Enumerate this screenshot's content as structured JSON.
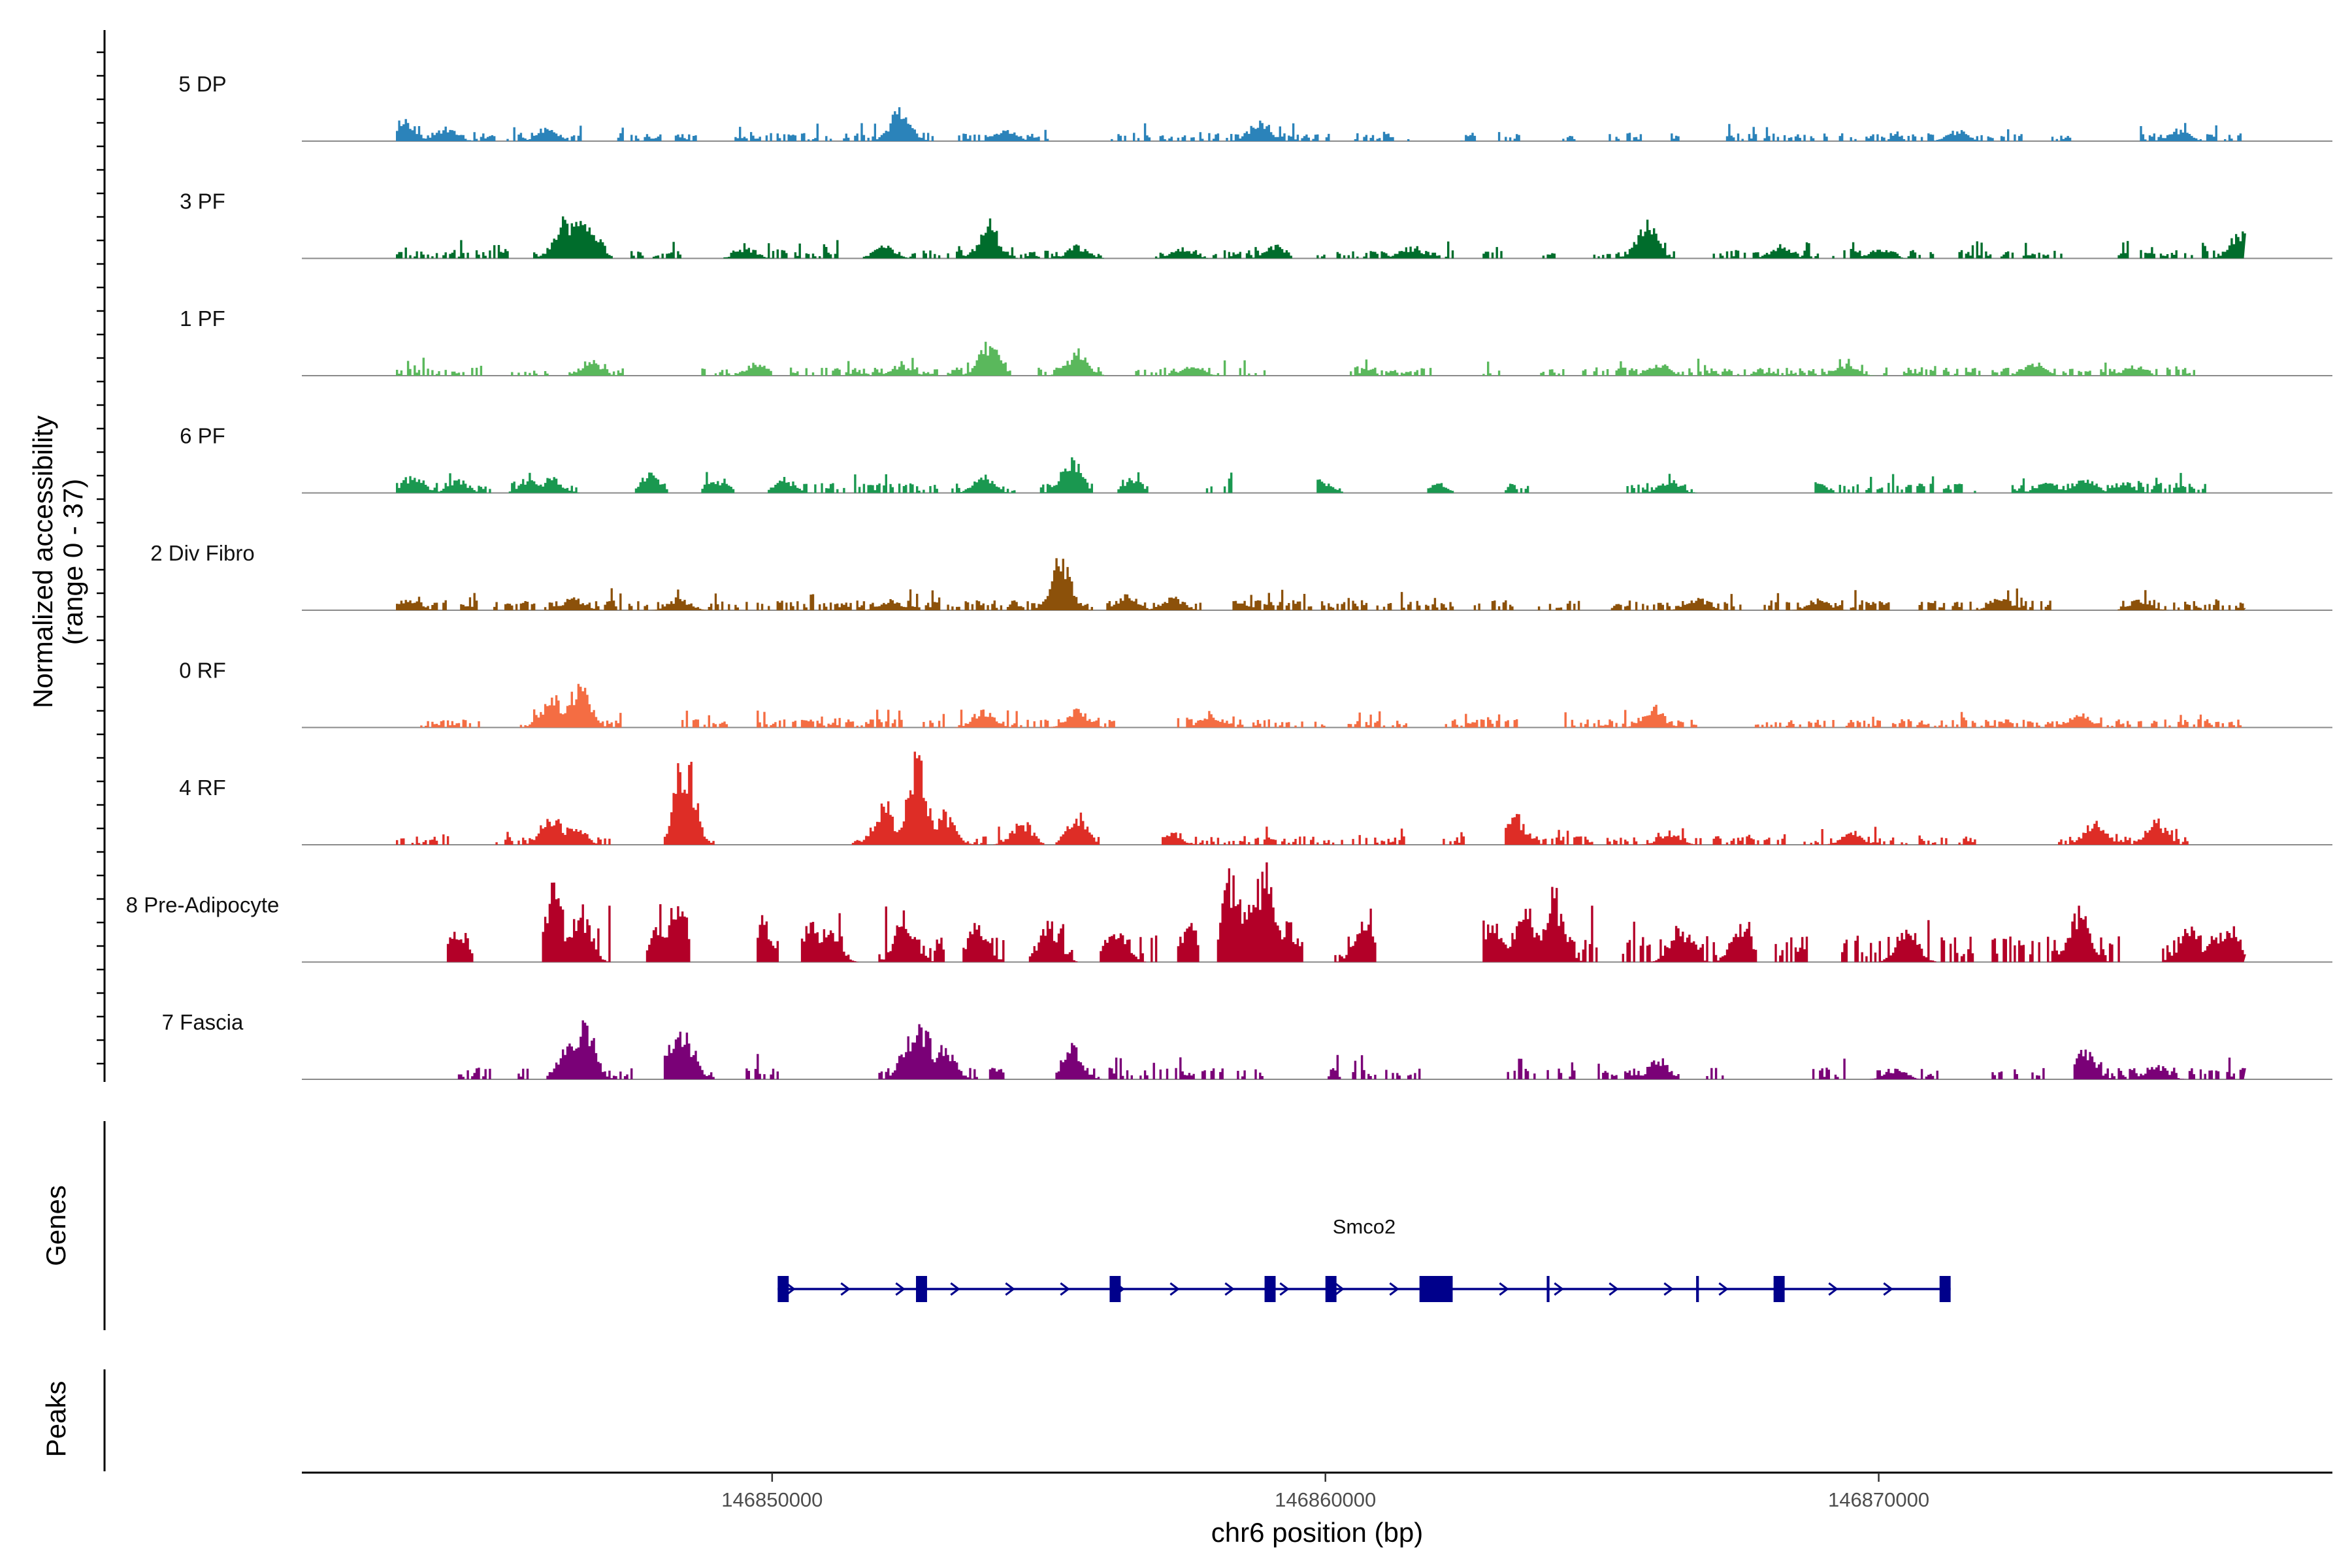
{
  "chart_data": {
    "type": "area",
    "title": "",
    "xlabel": "chr6 position (bp)",
    "ylabel": "Normalized accessibility\n(range 0 - 37)",
    "y_range": [
      0,
      37
    ],
    "xlim": [
      146841500,
      146878200
    ],
    "data_extent": [
      146843200,
      146876600
    ],
    "x_ticks": [
      146850000,
      146860000,
      146870000
    ],
    "x_tick_labels": [
      "146850000",
      "146860000",
      "146870000"
    ],
    "track_panel_label": "Genes",
    "peaks_panel_label": "Peaks",
    "series": [
      {
        "name": "5 DP",
        "color": "#2b83ba",
        "peaks": [
          [
            146843350,
            0.22
          ],
          [
            146844100,
            0.14
          ],
          [
            146845900,
            0.12
          ],
          [
            146848100,
            0.1
          ],
          [
            146852300,
            0.3
          ],
          [
            146854200,
            0.11
          ],
          [
            146858800,
            0.2
          ],
          [
            146862000,
            0.1
          ],
          [
            146866000,
            0.1
          ],
          [
            146871400,
            0.1
          ],
          [
            146875400,
            0.11
          ]
        ],
        "gaps": [
          [
            146846600,
            146847100
          ],
          [
            146848000,
            146848200
          ],
          [
            146848700,
            146849300
          ],
          [
            146852900,
            146853300
          ],
          [
            146855000,
            146856000
          ],
          [
            146860100,
            146860500
          ],
          [
            146861500,
            146862400
          ],
          [
            146862700,
            146863100
          ],
          [
            146863500,
            146864200
          ],
          [
            146864600,
            146865000
          ],
          [
            146865700,
            146866200
          ],
          [
            146866400,
            146867200
          ],
          [
            146872600,
            146873100
          ],
          [
            146873500,
            146874700
          ]
        ],
        "noise": 0.05,
        "seed": 11
      },
      {
        "name": "3 PF",
        "color": "#006d2c",
        "peaks": [
          [
            146846200,
            0.35
          ],
          [
            146846500,
            0.45
          ],
          [
            146846700,
            0.32
          ],
          [
            146849500,
            0.1
          ],
          [
            146852000,
            0.12
          ],
          [
            146853900,
            0.33
          ],
          [
            146855500,
            0.12
          ],
          [
            146857400,
            0.1
          ],
          [
            146859100,
            0.12
          ],
          [
            146861500,
            0.1
          ],
          [
            146865800,
            0.38
          ],
          [
            146868200,
            0.12
          ],
          [
            146870000,
            0.1
          ],
          [
            146876500,
            0.24
          ]
        ],
        "gaps": [
          [
            146845300,
            146845500
          ],
          [
            146847100,
            146847400
          ],
          [
            146848500,
            146849100
          ],
          [
            146851200,
            146851600
          ],
          [
            146856000,
            146856900
          ],
          [
            146859400,
            146859800
          ],
          [
            146862400,
            146862800
          ],
          [
            146863200,
            146863900
          ],
          [
            146864200,
            146864800
          ],
          [
            146866300,
            146866900
          ],
          [
            146871000,
            146871400
          ],
          [
            146873300,
            146874200
          ]
        ],
        "noise": 0.05,
        "seed": 23
      },
      {
        "name": "1 PF",
        "color": "#5ab85c",
        "peaks": [
          [
            146846700,
            0.14
          ],
          [
            146849700,
            0.12
          ],
          [
            146852300,
            0.1
          ],
          [
            146853900,
            0.3
          ],
          [
            146855500,
            0.24
          ],
          [
            146857600,
            0.1
          ],
          [
            146866000,
            0.12
          ],
          [
            146869400,
            0.1
          ],
          [
            146872800,
            0.12
          ],
          [
            146874600,
            0.1
          ]
        ],
        "gaps": [
          [
            146844800,
            146845200
          ],
          [
            146846000,
            146846300
          ],
          [
            146847300,
            146848700
          ],
          [
            146850000,
            146850200
          ],
          [
            146854300,
            146854700
          ],
          [
            146856000,
            146856400
          ],
          [
            146859000,
            146860400
          ],
          [
            146861900,
            146862800
          ],
          [
            146863200,
            146863800
          ],
          [
            146864300,
            146864600
          ],
          [
            146875800,
            146876700
          ]
        ],
        "noise": 0.05,
        "seed": 37
      },
      {
        "name": "6 PF",
        "color": "#1a9850",
        "peaks": [
          [
            146843500,
            0.18
          ],
          [
            146844300,
            0.12
          ],
          [
            146845600,
            0.14
          ],
          [
            146846000,
            0.14
          ],
          [
            146847800,
            0.2
          ],
          [
            146849000,
            0.12
          ],
          [
            146850200,
            0.14
          ],
          [
            146853800,
            0.16
          ],
          [
            146855400,
            0.3
          ],
          [
            146856500,
            0.14
          ],
          [
            146859900,
            0.12
          ],
          [
            146862000,
            0.1
          ],
          [
            146864600,
            0.12
          ],
          [
            146866200,
            0.12
          ],
          [
            146868800,
            0.1
          ],
          [
            146873000,
            0.1
          ],
          [
            146873700,
            0.14
          ],
          [
            146874400,
            0.1
          ]
        ],
        "gaps": [
          [
            146844900,
            146845200
          ],
          [
            146846500,
            146847500
          ],
          [
            146848100,
            146848700
          ],
          [
            146849300,
            146849900
          ],
          [
            146853000,
            146853200
          ],
          [
            146854400,
            146854800
          ],
          [
            146855800,
            146856200
          ],
          [
            146856800,
            146857800
          ],
          [
            146858300,
            146859800
          ],
          [
            146860300,
            146861800
          ],
          [
            146862300,
            146863200
          ],
          [
            146863700,
            146865300
          ],
          [
            146866700,
            146868800
          ],
          [
            146871800,
            146872300
          ],
          [
            146875900,
            146876600
          ]
        ],
        "noise": 0.06,
        "seed": 41
      },
      {
        "name": "2 Div Fibro",
        "color": "#8c510a",
        "peaks": [
          [
            146843400,
            0.12
          ],
          [
            146846400,
            0.12
          ],
          [
            146848300,
            0.12
          ],
          [
            146852100,
            0.1
          ],
          [
            146855200,
            0.48
          ],
          [
            146856400,
            0.14
          ],
          [
            146857200,
            0.12
          ],
          [
            146858400,
            0.1
          ],
          [
            146866700,
            0.12
          ],
          [
            146868900,
            0.1
          ],
          [
            146872200,
            0.12
          ],
          [
            146874700,
            0.1
          ]
        ],
        "gaps": [
          [
            146844100,
            146844300
          ],
          [
            146844700,
            146844900
          ],
          [
            146855800,
            146856000
          ],
          [
            146857800,
            146858300
          ],
          [
            146862300,
            146862600
          ],
          [
            146863400,
            146863800
          ],
          [
            146864600,
            146865100
          ],
          [
            146867600,
            146867900
          ],
          [
            146870200,
            146870600
          ],
          [
            146873100,
            146874300
          ]
        ],
        "noise": 0.06,
        "seed": 53
      },
      {
        "name": "0 RF",
        "color": "#f46d43",
        "peaks": [
          [
            146846000,
            0.3
          ],
          [
            146846500,
            0.42
          ],
          [
            146853800,
            0.18
          ],
          [
            146855500,
            0.16
          ],
          [
            146857900,
            0.14
          ],
          [
            146865900,
            0.2
          ],
          [
            146873600,
            0.14
          ]
        ],
        "gaps": [
          [
            146843000,
            146843600
          ],
          [
            146844700,
            146845300
          ],
          [
            146847300,
            146848300
          ],
          [
            146849200,
            146849700
          ],
          [
            146852400,
            146852700
          ],
          [
            146856200,
            146857300
          ],
          [
            146860000,
            146860300
          ],
          [
            146861500,
            146862100
          ],
          [
            146863600,
            146864300
          ],
          [
            146866800,
            146867600
          ]
        ],
        "noise": 0.05,
        "seed": 67
      },
      {
        "name": "4 RF",
        "color": "#de2d26",
        "peaks": [
          [
            146846000,
            0.3
          ],
          [
            146846400,
            0.22
          ],
          [
            146848400,
            0.85
          ],
          [
            146852000,
            0.4
          ],
          [
            146852600,
            0.82
          ],
          [
            146853100,
            0.3
          ],
          [
            146854500,
            0.22
          ],
          [
            146855500,
            0.3
          ],
          [
            146857200,
            0.1
          ],
          [
            146863400,
            0.28
          ],
          [
            146866200,
            0.12
          ],
          [
            146869500,
            0.12
          ],
          [
            146873900,
            0.22
          ],
          [
            146875000,
            0.24
          ]
        ],
        "gaps": [
          [
            146844200,
            146844900
          ],
          [
            146847100,
            146848000
          ],
          [
            146849000,
            146851400
          ],
          [
            146854900,
            146855100
          ],
          [
            146855900,
            146857000
          ],
          [
            146861500,
            146862100
          ],
          [
            146862500,
            146863200
          ],
          [
            146868300,
            146868600
          ],
          [
            146870500,
            146870700
          ],
          [
            146871900,
            146873200
          ],
          [
            146875600,
            146876700
          ]
        ],
        "noise": 0.05,
        "seed": 79
      },
      {
        "name": "8 Pre-Adipocyte",
        "color": "#b30028",
        "peaks": [
          [
            146844300,
            0.35
          ],
          [
            146846000,
            0.68
          ],
          [
            146846500,
            0.5
          ],
          [
            146847900,
            0.3
          ],
          [
            146848300,
            0.5
          ],
          [
            146849800,
            0.4
          ],
          [
            146850700,
            0.35
          ],
          [
            146851000,
            0.3
          ],
          [
            146852400,
            0.45
          ],
          [
            146853700,
            0.35
          ],
          [
            146855000,
            0.35
          ],
          [
            146856200,
            0.35
          ],
          [
            146857500,
            0.35
          ],
          [
            146858300,
            0.82
          ],
          [
            146858700,
            0.72
          ],
          [
            146858900,
            0.85
          ],
          [
            146859300,
            0.38
          ],
          [
            146860700,
            0.35
          ],
          [
            146863000,
            0.35
          ],
          [
            146863600,
            0.55
          ],
          [
            146864100,
            0.68
          ],
          [
            146866400,
            0.35
          ],
          [
            146867500,
            0.35
          ],
          [
            146870500,
            0.35
          ],
          [
            146873600,
            0.5
          ],
          [
            146875600,
            0.35
          ],
          [
            146876300,
            0.35
          ]
        ],
        "gaps": [
          [
            146843000,
            146844100
          ],
          [
            146844600,
            146845800
          ],
          [
            146847100,
            146847700
          ],
          [
            146848500,
            146849700
          ],
          [
            146850100,
            146850500
          ],
          [
            146851600,
            146851900
          ],
          [
            146853100,
            146853400
          ],
          [
            146854200,
            146854600
          ],
          [
            146855500,
            146855900
          ],
          [
            146857000,
            146857300
          ],
          [
            146857700,
            146858000
          ],
          [
            146859600,
            146860000
          ],
          [
            146860900,
            146862800
          ],
          [
            146865000,
            146865300
          ],
          [
            146867800,
            146868100
          ],
          [
            146868700,
            146869300
          ],
          [
            146871700,
            146872000
          ],
          [
            146874400,
            146875100
          ]
        ],
        "noise": 0.16,
        "seed": 97
      },
      {
        "name": "7 Fascia",
        "color": "#7a0177",
        "peaks": [
          [
            146846300,
            0.35
          ],
          [
            146846600,
            0.52
          ],
          [
            146848200,
            0.38
          ],
          [
            146848400,
            0.45
          ],
          [
            146852500,
            0.42
          ],
          [
            146852700,
            0.5
          ],
          [
            146853100,
            0.3
          ],
          [
            146854000,
            0.1
          ],
          [
            146855400,
            0.3
          ],
          [
            146866000,
            0.2
          ],
          [
            146870300,
            0.1
          ],
          [
            146873700,
            0.28
          ],
          [
            146875000,
            0.14
          ]
        ],
        "gaps": [
          [
            146843000,
            146844300
          ],
          [
            146844900,
            146845300
          ],
          [
            146845600,
            146845900
          ],
          [
            146847500,
            146848000
          ],
          [
            146849000,
            146849500
          ],
          [
            146850100,
            146851900
          ],
          [
            146853700,
            146853900
          ],
          [
            146854200,
            146855100
          ],
          [
            146859000,
            146860000
          ],
          [
            146861800,
            146863200
          ],
          [
            146864500,
            146864900
          ],
          [
            146866400,
            146866800
          ],
          [
            146867200,
            146868700
          ],
          [
            146869400,
            146869800
          ],
          [
            146871100,
            146872000
          ],
          [
            146873000,
            146873500
          ]
        ],
        "noise": 0.07,
        "seed": 113
      }
    ],
    "genes": [
      {
        "name": "Smco2",
        "strand": "+",
        "start": 146850100,
        "end": 146871300,
        "exons": [
          [
            146850100,
            146850300
          ],
          [
            146852600,
            146852800
          ],
          [
            146856100,
            146856300
          ],
          [
            146858900,
            146859100
          ],
          [
            146860000,
            146860200
          ],
          [
            146861700,
            146862300
          ],
          [
            146864000,
            146864050
          ],
          [
            146866700,
            146866750
          ],
          [
            146868100,
            146868300
          ],
          [
            146871100,
            146871300
          ]
        ]
      }
    ]
  }
}
